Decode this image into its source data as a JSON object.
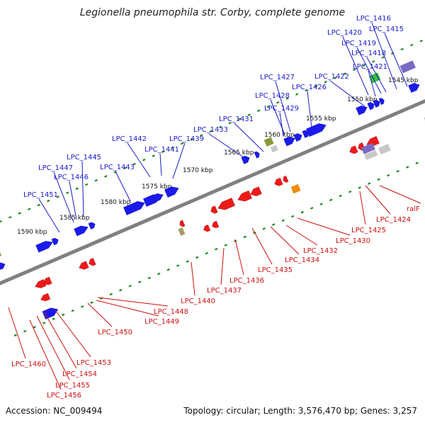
{
  "title": "Legionella pneumophila str. Corby, complete genome",
  "footer": {
    "accession": "Accession: NC_009494",
    "summary": "Topology: circular; Length: 3,576,470 bp; Genes: 3,257"
  },
  "colors": {
    "forward_gene": "#1a1aee",
    "reverse_gene": "#ee1a1a",
    "backbone": "#808080",
    "tick": "#1f8a1f",
    "forward_label": "#1a1ac8",
    "reverse_label": "#cc1010",
    "scale_text": "#111111",
    "feature_purple": "#7a6ac4",
    "feature_green": "#35c035",
    "feature_olive": "#8a9a3a",
    "feature_gray": "#c8c8c8",
    "feature_orange": "#f08a10",
    "feature_tan": "#a89a60"
  },
  "scale": {
    "unit": "kbp",
    "ticks": [
      "1545 kbp",
      "1550 kbp",
      "1555 kbp",
      "1560 kbp",
      "1565 kbp",
      "1570 kbp",
      "1575 kbp",
      "1580 kbp",
      "1585 kbp",
      "1590 kbp"
    ]
  },
  "forward_labels": [
    "LPC_1416",
    "LPC_1420",
    "LPC_1415",
    "LPC_1419",
    "LPC_1418",
    "LPC_1421",
    "LPC_1427",
    "LPC_1422",
    "LPC_1426",
    "LPC_1428",
    "LPC_1429",
    "LPC_1431",
    "LPC_1433",
    "LPC_1442",
    "LPC_1441",
    "LPC_1439",
    "LPC_1445",
    "LPC_1447",
    "LPC_1443",
    "LPC_1446",
    "LPC_1451"
  ],
  "reverse_labels": [
    "ralF",
    "LPC_1424",
    "LPC_1425",
    "LPC_1430",
    "LPC_1432",
    "LPC_1434",
    "LPC_1435",
    "LPC_1436",
    "LPC_1437",
    "LPC_1440",
    "LPC_1448",
    "LPC_1449",
    "LPC_1450",
    "LPC_1453",
    "LPC_1460",
    "LPC_1454",
    "LPC_1455",
    "LPC_1456"
  ]
}
